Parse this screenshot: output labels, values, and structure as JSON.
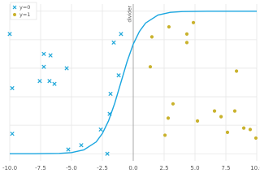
{
  "chart_data": {
    "type": "scatter",
    "xlim": [
      -10,
      10
    ],
    "ylim": [
      -0.05,
      1.05
    ],
    "xticks": [
      {
        "value": -10,
        "label": "-10.0"
      },
      {
        "value": -7.5,
        "label": "-7.5"
      },
      {
        "value": -5,
        "label": "-5.0"
      },
      {
        "value": -2.5,
        "label": "-2.5"
      },
      {
        "value": 0,
        "label": "0.0"
      },
      {
        "value": 2.5,
        "label": "2.5"
      },
      {
        "value": 5,
        "label": "5.0"
      },
      {
        "value": 7.5,
        "label": "7.5"
      },
      {
        "value": 10,
        "label": "10.0"
      }
    ],
    "yticks": [
      0,
      0.2,
      0.4,
      0.6,
      0.8,
      1
    ],
    "grid": true,
    "legend": "upper left",
    "series": [
      {
        "name": "y=0",
        "color": "#1ea7d9",
        "marker": "x",
        "x": [
          -10.0,
          -9.8,
          -9.8,
          -7.24,
          -6.7,
          -7.24,
          -7.57,
          -6.78,
          -6.38,
          -5.39,
          -5.26,
          -4.21,
          -2.63,
          -1.91,
          -1.84,
          -2.1,
          -1.58,
          -0.99,
          -1.18
        ],
        "values": [
          0.84,
          0.46,
          0.14,
          0.7,
          0.69,
          0.61,
          0.51,
          0.51,
          0.49,
          0.6,
          0.03,
          0.06,
          0.17,
          0.28,
          0.42,
          0.0,
          0.78,
          0.84,
          0.55
        ]
      },
      {
        "name": "y=1",
        "color": "#c9b22c",
        "marker": "o",
        "x": [
          1.51,
          2.89,
          4.34,
          4.87,
          4.34,
          1.38,
          3.22,
          2.83,
          2.57,
          5.2,
          6.58,
          7.11,
          8.22,
          8.36,
          7.63,
          8.95,
          9.47,
          9.93
        ],
        "values": [
          0.82,
          0.89,
          0.84,
          0.92,
          0.78,
          0.61,
          0.35,
          0.25,
          0.13,
          0.23,
          0.3,
          0.26,
          0.3,
          0.58,
          0.15,
          0.18,
          0.17,
          0.11
        ]
      },
      {
        "color": "#1aa6e0",
        "marker": "line",
        "x": [
          -10,
          -8,
          -6,
          -5,
          -4,
          -3,
          -2.5,
          -2,
          -1.5,
          -1,
          -0.5,
          0,
          0.5,
          1,
          2,
          3,
          4,
          6,
          8,
          10
        ],
        "values": [
          0.0,
          0.0002,
          0.0025,
          0.008,
          0.027,
          0.083,
          0.142,
          0.231,
          0.354,
          0.5,
          0.646,
          0.769,
          0.858,
          0.917,
          0.973,
          0.992,
          0.9975,
          0.9998,
          1.0,
          1.0
        ]
      }
    ],
    "annotations": [
      {
        "text": "divider",
        "x": 0
      }
    ]
  }
}
